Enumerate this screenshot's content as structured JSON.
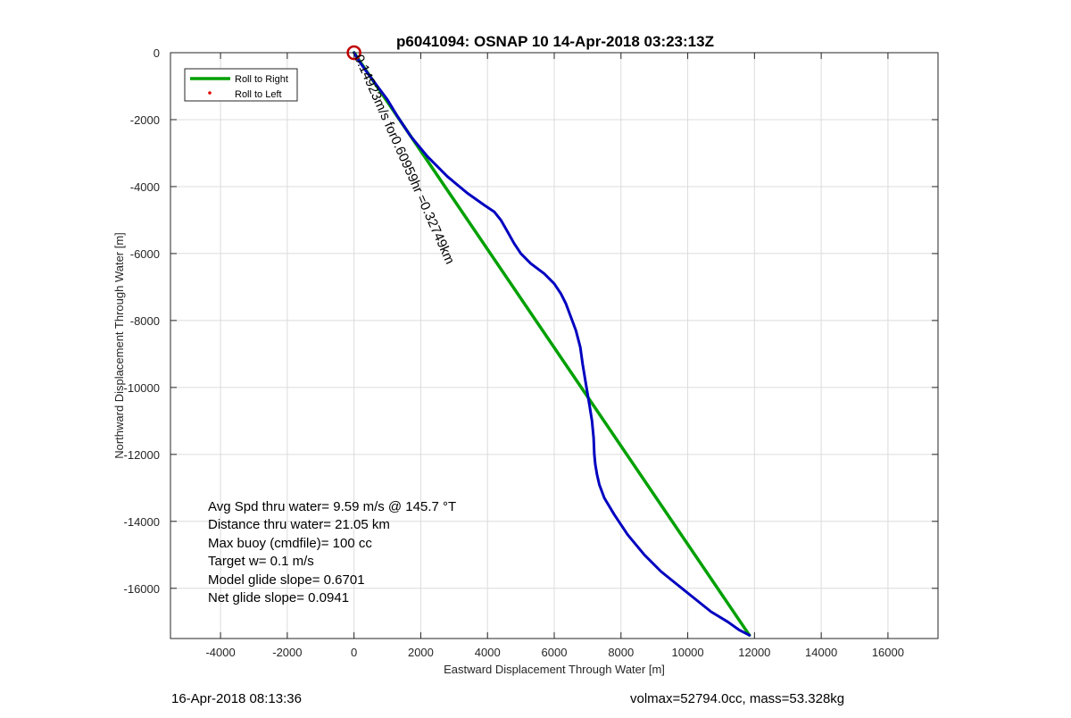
{
  "chart_data": {
    "type": "line",
    "title": "p6041094: OSNAP 10 14-Apr-2018 03:23:13Z",
    "xlabel": "Eastward Displacement Through Water [m]",
    "ylabel": "Northward Displacement Through Water [m]",
    "xlim": [
      -5500,
      17500
    ],
    "ylim": [
      -17500,
      0
    ],
    "xticks": [
      -4000,
      -2000,
      0,
      2000,
      4000,
      6000,
      8000,
      10000,
      12000,
      14000,
      16000
    ],
    "yticks": [
      0,
      -2000,
      -4000,
      -6000,
      -8000,
      -10000,
      -12000,
      -14000,
      -16000
    ],
    "grid": true,
    "legend_position": "top-left",
    "legend": [
      {
        "label": "Roll to Right",
        "color": "#00a000",
        "marker": "line"
      },
      {
        "label": "Roll to Left",
        "color": "#e00000",
        "marker": "dot"
      }
    ],
    "series": [
      {
        "color": "#00a000",
        "x": [
          0,
          11850
        ],
        "y": [
          0,
          -17400
        ]
      },
      {
        "color": "#0000c0",
        "x": [
          0,
          150,
          400,
          700,
          1000,
          1300,
          1700,
          2200,
          2800,
          3400,
          3900,
          4200,
          4400,
          4600,
          4800,
          5000,
          5300,
          5700,
          6000,
          6200,
          6350,
          6500,
          6650,
          6780,
          6850,
          6950,
          7050,
          7130,
          7180,
          7200,
          7230,
          7280,
          7350,
          7500,
          7800,
          8200,
          8700,
          9200,
          9700,
          10200,
          10700,
          11200,
          11550,
          11850
        ],
        "y": [
          0,
          -250,
          -600,
          -1000,
          -1400,
          -1900,
          -2500,
          -3100,
          -3700,
          -4200,
          -4550,
          -4750,
          -5000,
          -5350,
          -5700,
          -6000,
          -6300,
          -6600,
          -6900,
          -7200,
          -7500,
          -7900,
          -8300,
          -8800,
          -9300,
          -9900,
          -10500,
          -11000,
          -11500,
          -12000,
          -12300,
          -12600,
          -12900,
          -13300,
          -13800,
          -14400,
          -15000,
          -15500,
          -15900,
          -16300,
          -16700,
          -17000,
          -17250,
          -17400
        ]
      }
    ],
    "markers": [
      {
        "shape": "circle",
        "color": "#c00000",
        "x": 0,
        "y": 0
      }
    ],
    "annotations": {
      "rotated": "0.14923m/s for0.60959hr =0.32749km",
      "stats": [
        "Avg Spd thru water=  9.59 m/s @ 145.7 °T",
        "Distance thru water= 21.05 km",
        "Max buoy (cmdfile)= 100 cc",
        "Target w= 0.1 m/s",
        "Model glide slope= 0.6701",
        "Net glide slope= 0.0941"
      ]
    }
  },
  "footer": {
    "left": "16-Apr-2018 08:13:36",
    "right": "volmax=52794.0cc, mass=53.328kg"
  }
}
